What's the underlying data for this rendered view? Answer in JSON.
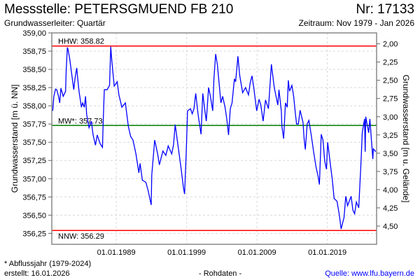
{
  "header": {
    "title": "Messstelle: PETERSGMUEND FB 210",
    "number": "Nr: 17133",
    "aquifer": "Grundwasserleiter: Quartär",
    "period": "Zeitraum: Nov 1979 - Jan 2026"
  },
  "footer": {
    "footnote": "* Abflussjahr (1979-2024)",
    "created": "erstellt:  16.01.2026",
    "rawdata": "- Rohdaten -",
    "source": "Quelle: www.lfu.bayern.de"
  },
  "colors": {
    "series": "#0000ff",
    "extreme_lines": "#ff0000",
    "mean_line": "#008000",
    "grid": "#d8d8d8",
    "source_link": "#0000ff"
  },
  "chart_data": {
    "type": "line",
    "title": "",
    "ylabel": "Grundwasserstand [m ü. NN]",
    "ylabel_right": "Grundwasserstand [m u. Gelände]",
    "xlabel": "",
    "ylim": [
      356.1,
      359.0
    ],
    "xlim": [
      "1979-11",
      "2026-01"
    ],
    "grid": true,
    "yticks": [
      "359,00",
      "358,75",
      "358,50",
      "358,25",
      "358,00",
      "357,75",
      "357,50",
      "357,25",
      "357,00",
      "356,75",
      "356,50",
      "356,25"
    ],
    "ytick_values": [
      359.0,
      358.75,
      358.5,
      358.25,
      358.0,
      357.75,
      357.5,
      357.25,
      357.0,
      356.75,
      356.5,
      356.25
    ],
    "yticks_right": [
      "2,00",
      "2,25",
      "2,50",
      "2,75",
      "3,00",
      "3,25",
      "3,50",
      "3,75",
      "4,00",
      "4,25",
      "4,50"
    ],
    "ytick_right_values": [
      2.0,
      2.25,
      2.5,
      2.75,
      3.0,
      3.25,
      3.5,
      3.75,
      4.0,
      4.25,
      4.5
    ],
    "xticks": [
      "01.01.1989",
      "01.01.1999",
      "01.01.2009",
      "01.01.2019"
    ],
    "xtick_dates": [
      "1989-01",
      "1999-01",
      "2009-01",
      "2019-01"
    ],
    "reference_lines": [
      {
        "label": "HHW: 358.82",
        "value": 358.82,
        "color": "#ff0000"
      },
      {
        "label": "MW*: 357.73",
        "value": 357.73,
        "color": "#008000"
      },
      {
        "label": "NNW: 356.29",
        "value": 356.29,
        "color": "#ff0000"
      }
    ],
    "series": [
      {
        "color": "#0000ff",
        "x": [
          "1979-12",
          "1980-02",
          "1980-05",
          "1980-07",
          "1980-10",
          "1980-12",
          "1981-02",
          "1981-06",
          "1981-10",
          "1981-11",
          "1982-01",
          "1982-02",
          "1982-05",
          "1982-08",
          "1982-12",
          "1983-02",
          "1983-05",
          "1983-07",
          "1983-09",
          "1984-01",
          "1984-03",
          "1984-06",
          "1984-08",
          "1984-10",
          "1985-02",
          "1985-06",
          "1985-09",
          "1986-01",
          "1986-04",
          "1986-09",
          "1987-01",
          "1987-02",
          "1987-04",
          "1987-09",
          "1988-01",
          "1988-03",
          "1988-05",
          "1988-09",
          "1989-02",
          "1989-05",
          "1989-10",
          "1990-04",
          "1990-09",
          "1991-01",
          "1991-05",
          "1991-10",
          "1992-03",
          "1992-05",
          "1992-09",
          "1993-03",
          "1993-07",
          "1993-12",
          "1994-01",
          "1994-06",
          "1994-11",
          "1995-02",
          "1995-08",
          "1996-01",
          "1996-05",
          "1996-11",
          "1997-02",
          "1997-05",
          "1997-08",
          "1998-03",
          "1998-07",
          "1998-09",
          "1998-12",
          "1999-02",
          "1999-07",
          "1999-10",
          "2000-01",
          "2000-04",
          "2000-08",
          "2001-01",
          "2001-04",
          "2001-08",
          "2001-10",
          "2002-02",
          "2002-05",
          "2002-09",
          "2002-11",
          "2003-02",
          "2003-05",
          "2003-08",
          "2003-11",
          "2004-02",
          "2004-06",
          "2004-09",
          "2004-12",
          "2005-03",
          "2005-06",
          "2005-10",
          "2005-12",
          "2006-04",
          "2006-07",
          "2006-12",
          "2007-05",
          "2007-10",
          "2008-01",
          "2008-04",
          "2008-07",
          "2008-12",
          "2009-04",
          "2009-07",
          "2009-11",
          "2010-03",
          "2010-08",
          "2011-01",
          "2011-06",
          "2011-12",
          "2012-02",
          "2012-06",
          "2012-07",
          "2012-10",
          "2013-01",
          "2013-04",
          "2013-06",
          "2013-08",
          "2013-12",
          "2014-03",
          "2014-06",
          "2014-08",
          "2014-11",
          "2015-02",
          "2015-07",
          "2015-09",
          "2015-11",
          "2016-02",
          "2016-05",
          "2016-09",
          "2017-01",
          "2017-05",
          "2017-09",
          "2017-11",
          "2018-02",
          "2018-05",
          "2018-08",
          "2018-11",
          "2019-01",
          "2019-05",
          "2019-09",
          "2019-12",
          "2020-05",
          "2020-09",
          "2020-12",
          "2021-05",
          "2021-08",
          "2021-11",
          "2022-05",
          "2022-08",
          "2022-11",
          "2023-02",
          "2023-06",
          "2023-10",
          "2023-12",
          "2024-04",
          "2024-05",
          "2024-06",
          "2024-11",
          "2025-01",
          "2025-06",
          "2025-07",
          "2025-11"
        ],
        "y": [
          357.93,
          358.13,
          358.23,
          358.22,
          358.13,
          358.04,
          358.24,
          358.13,
          358.2,
          358.47,
          358.8,
          358.78,
          358.65,
          358.46,
          358.22,
          358.37,
          358.52,
          358.35,
          358.2,
          357.98,
          358.04,
          357.98,
          358.13,
          357.88,
          357.7,
          357.79,
          357.6,
          357.46,
          357.6,
          357.48,
          357.43,
          357.74,
          358.22,
          358.22,
          358.28,
          358.81,
          358.61,
          358.27,
          358.33,
          358.15,
          357.98,
          358.04,
          357.72,
          357.58,
          357.53,
          357.34,
          357.08,
          357.21,
          356.98,
          356.95,
          356.83,
          356.64,
          357.05,
          357.53,
          357.34,
          357.19,
          357.38,
          357.32,
          357.45,
          357.34,
          357.46,
          357.74,
          357.56,
          357.14,
          356.88,
          356.79,
          357.4,
          357.93,
          357.96,
          357.89,
          357.96,
          358.17,
          357.88,
          357.61,
          358.17,
          357.91,
          357.79,
          358.25,
          358.13,
          357.93,
          358.37,
          358.71,
          358.56,
          358.3,
          358.04,
          358.13,
          357.98,
          357.82,
          357.6,
          357.96,
          358.04,
          358.37,
          358.33,
          358.68,
          358.42,
          358.18,
          358.25,
          358.15,
          358.32,
          358.41,
          358.25,
          357.93,
          358.09,
          358.01,
          357.79,
          358.08,
          357.96,
          358.57,
          358.25,
          358.01,
          358.22,
          357.93,
          357.72,
          357.55,
          358.04,
          357.98,
          358.35,
          358.2,
          358.28,
          358.13,
          357.89,
          357.75,
          357.75,
          357.94,
          357.77,
          357.53,
          357.4,
          357.75,
          357.8,
          357.6,
          357.37,
          357.17,
          357.02,
          356.92,
          357.61,
          357.53,
          357.24,
          357.13,
          357.5,
          357.24,
          356.98,
          356.73,
          356.69,
          356.5,
          356.31,
          356.47,
          356.76,
          356.63,
          356.76,
          356.57,
          356.52,
          356.68,
          356.6,
          357.24,
          357.63,
          357.82,
          357.37,
          357.85,
          357.63,
          357.82,
          357.27,
          357.41,
          357.37
        ]
      }
    ]
  }
}
